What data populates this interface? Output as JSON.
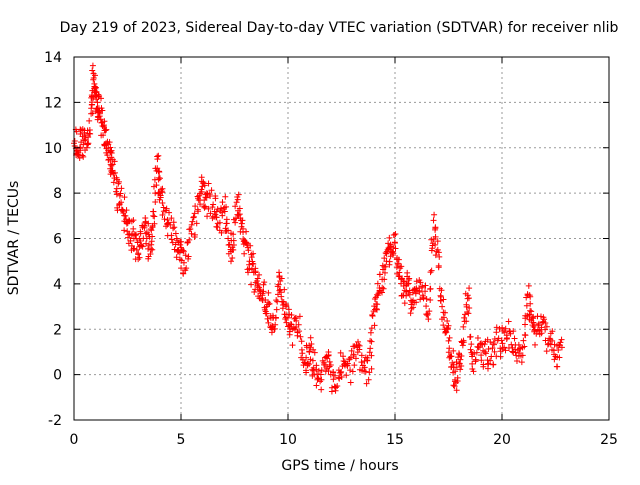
{
  "chart_data": {
    "type": "scatter",
    "title": "Day 219 of 2023, Sidereal Day-to-day VTEC variation (SDTVAR) for receiver nlib",
    "xlabel": "GPS time / hours",
    "ylabel": "SDTVAR / TECUs",
    "xlim": [
      0,
      25
    ],
    "ylim": [
      -2,
      14
    ],
    "grid": true,
    "marker": "+",
    "x_ticks": [
      "0",
      "5",
      "10",
      "15",
      "20",
      "25"
    ],
    "y_ticks": [
      "-2",
      "0",
      "2",
      "4",
      "6",
      "8",
      "10",
      "12",
      "14"
    ],
    "series": [
      {
        "name": "SDTVAR",
        "color": "#ff0000",
        "approx_points": [
          [
            0.0,
            10.2
          ],
          [
            0.2,
            9.8
          ],
          [
            0.4,
            10.5
          ],
          [
            0.6,
            10.0
          ],
          [
            0.8,
            11.5
          ],
          [
            0.9,
            13.0
          ],
          [
            1.0,
            12.6
          ],
          [
            1.1,
            12.0
          ],
          [
            1.2,
            11.5
          ],
          [
            1.4,
            11.0
          ],
          [
            1.5,
            10.2
          ],
          [
            1.7,
            9.8
          ],
          [
            1.8,
            9.0
          ],
          [
            2.0,
            8.2
          ],
          [
            2.2,
            7.6
          ],
          [
            2.4,
            7.0
          ],
          [
            2.6,
            6.2
          ],
          [
            2.8,
            6.0
          ],
          [
            3.0,
            5.3
          ],
          [
            3.2,
            6.5
          ],
          [
            3.4,
            6.0
          ],
          [
            3.6,
            5.5
          ],
          [
            3.7,
            7.0
          ],
          [
            3.9,
            9.5
          ],
          [
            4.0,
            8.0
          ],
          [
            4.2,
            7.2
          ],
          [
            4.5,
            6.6
          ],
          [
            4.8,
            6.0
          ],
          [
            5.0,
            5.6
          ],
          [
            5.2,
            4.6
          ],
          [
            5.5,
            6.6
          ],
          [
            5.8,
            7.2
          ],
          [
            6.0,
            8.3
          ],
          [
            6.2,
            7.8
          ],
          [
            6.5,
            7.5
          ],
          [
            6.7,
            6.5
          ],
          [
            7.0,
            7.3
          ],
          [
            7.2,
            6.0
          ],
          [
            7.4,
            5.5
          ],
          [
            7.6,
            7.6
          ],
          [
            7.8,
            6.8
          ],
          [
            8.0,
            5.8
          ],
          [
            8.2,
            5.0
          ],
          [
            8.4,
            4.5
          ],
          [
            8.6,
            4.0
          ],
          [
            8.8,
            3.5
          ],
          [
            9.0,
            3.0
          ],
          [
            9.2,
            2.5
          ],
          [
            9.4,
            2.2
          ],
          [
            9.6,
            4.3
          ],
          [
            9.8,
            3.2
          ],
          [
            10.0,
            2.5
          ],
          [
            10.2,
            2.0
          ],
          [
            10.5,
            2.2
          ],
          [
            10.8,
            0.5
          ],
          [
            11.0,
            1.0
          ],
          [
            11.2,
            0.3
          ],
          [
            11.5,
            -0.3
          ],
          [
            11.8,
            0.8
          ],
          [
            12.0,
            0.0
          ],
          [
            12.3,
            -0.5
          ],
          [
            12.6,
            0.6
          ],
          [
            12.9,
            0.2
          ],
          [
            13.2,
            1.3
          ],
          [
            13.5,
            0.4
          ],
          [
            13.8,
            0.1
          ],
          [
            14.0,
            2.8
          ],
          [
            14.2,
            3.5
          ],
          [
            14.4,
            4.2
          ],
          [
            14.6,
            5.0
          ],
          [
            14.8,
            5.5
          ],
          [
            15.0,
            5.8
          ],
          [
            15.2,
            4.5
          ],
          [
            15.4,
            3.5
          ],
          [
            15.6,
            4.0
          ],
          [
            15.8,
            3.2
          ],
          [
            16.0,
            3.8
          ],
          [
            16.3,
            3.5
          ],
          [
            16.6,
            2.8
          ],
          [
            16.8,
            6.8
          ],
          [
            17.0,
            5.5
          ],
          [
            17.2,
            3.0
          ],
          [
            17.4,
            2.0
          ],
          [
            17.6,
            0.8
          ],
          [
            17.8,
            -0.3
          ],
          [
            18.0,
            0.5
          ],
          [
            18.2,
            1.5
          ],
          [
            18.4,
            3.5
          ],
          [
            18.6,
            0.8
          ],
          [
            18.9,
            1.2
          ],
          [
            19.2,
            1.0
          ],
          [
            19.5,
            0.8
          ],
          [
            19.8,
            1.5
          ],
          [
            20.1,
            1.2
          ],
          [
            20.4,
            1.8
          ],
          [
            20.7,
            0.6
          ],
          [
            21.0,
            1.5
          ],
          [
            21.2,
            3.5
          ],
          [
            21.4,
            2.5
          ],
          [
            21.6,
            1.8
          ],
          [
            21.9,
            2.3
          ],
          [
            22.2,
            1.6
          ],
          [
            22.5,
            0.8
          ],
          [
            22.8,
            1.2
          ]
        ]
      }
    ]
  }
}
